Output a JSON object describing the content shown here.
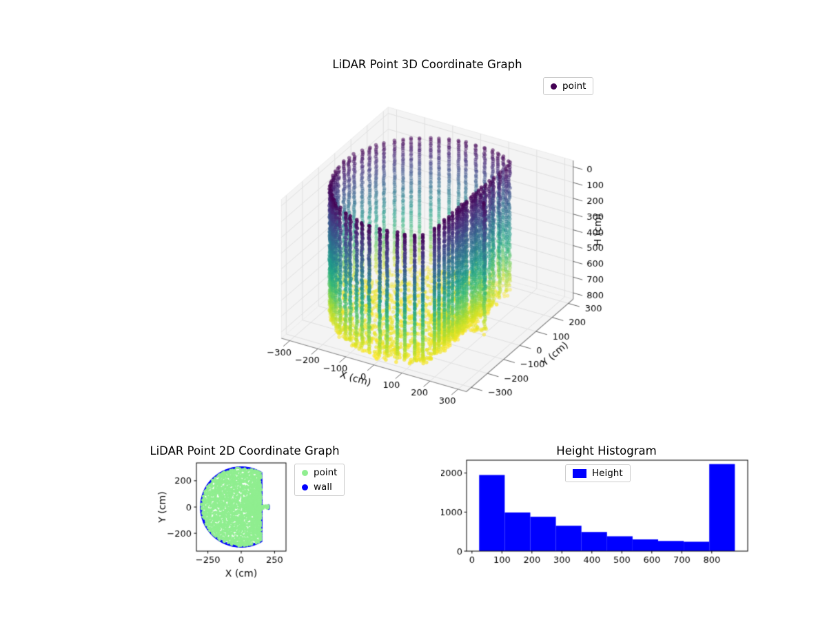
{
  "style": {
    "background": "#ffffff",
    "pane_color": "#f4f4f4",
    "grid_color": "#e0e0e0",
    "axis_color": "#8a8a8a",
    "tick_color": "#555555",
    "text_color": "#000000",
    "legend_border": "#cccccc"
  },
  "chart_data": [
    {
      "type": "scatter",
      "projection": "3d",
      "title": "LiDAR Point 3D Coordinate Graph",
      "xlabel": "X (cm)",
      "ylabel": "Y (cm)",
      "zlabel": "H (cm)",
      "xlim": [
        -330,
        330
      ],
      "ylim": [
        -330,
        330
      ],
      "zlim": [
        -40,
        840
      ],
      "z_axis_inverted": true,
      "xticks": [
        -300,
        -200,
        -100,
        0,
        100,
        200,
        300
      ],
      "yticks": [
        -300,
        -200,
        -100,
        0,
        100,
        200,
        300
      ],
      "zticks": [
        0,
        100,
        200,
        300,
        400,
        500,
        600,
        700,
        800
      ],
      "view": {
        "elev": 30,
        "azim": -60,
        "box_aspect": [
          4,
          4,
          3
        ]
      },
      "legend": [
        {
          "label": "point",
          "color": "#440154",
          "marker": "dot"
        }
      ],
      "colormap": "viridis",
      "colormap_stops": [
        "#440154",
        "#482878",
        "#3e4989",
        "#31688e",
        "#26828e",
        "#1f9e89",
        "#35b779",
        "#6ece58",
        "#b5de2b",
        "#fde725"
      ],
      "color_by": "H (cm)",
      "color_range": [
        0,
        835
      ],
      "point_cloud": {
        "shape": "cylindrical room scan: vertical wall columns around perimeter plus floor disk at bottom",
        "wall_columns": 64,
        "wall_h_range": [
          0,
          800
        ],
        "wall_h_step": 12,
        "base_radius": 300,
        "wall_x": 150,
        "wall_half_angle_deg": 60,
        "nub_x": 205,
        "nub_half_angle_deg": 4,
        "floor_h_range": [
          800,
          835
        ],
        "floor_points": 1500,
        "seed": 42
      }
    },
    {
      "type": "scatter",
      "title": "LiDAR Point 2D Coordinate Graph",
      "xlabel": "X (cm)",
      "ylabel": "Y (cm)",
      "xlim": [
        -336,
        336
      ],
      "ylim": [
        -336,
        336
      ],
      "xticks": [
        -250,
        0,
        250
      ],
      "yticks": [
        -200,
        0,
        200
      ],
      "legend": [
        {
          "label": "point",
          "color": "#90ee90",
          "marker": "dot"
        },
        {
          "label": "wall",
          "color": "#0000ff",
          "marker": "dot"
        }
      ],
      "region": {
        "base_radius": 300,
        "wall_x": 150,
        "wall_half_angle_deg": 60,
        "nub_x": 205,
        "nub_half_angle_deg": 4,
        "fill_points": 3200,
        "wall_points": 300,
        "seed": 7
      }
    },
    {
      "type": "bar",
      "title": "Height Histogram",
      "xlabel": "",
      "ylabel": "",
      "xlim": [
        -18,
        920
      ],
      "ylim": [
        0,
        2330
      ],
      "xticks": [
        0,
        100,
        200,
        300,
        400,
        500,
        600,
        700,
        800
      ],
      "yticks": [
        0,
        1000,
        2000
      ],
      "legend": [
        {
          "label": "Height",
          "color": "#0000ff",
          "marker": "patch"
        }
      ],
      "bar_color": "#0000ff",
      "bin_start": 24,
      "bin_width": 85.3,
      "values": [
        1950,
        990,
        880,
        650,
        490,
        380,
        300,
        260,
        240,
        2230
      ]
    }
  ]
}
